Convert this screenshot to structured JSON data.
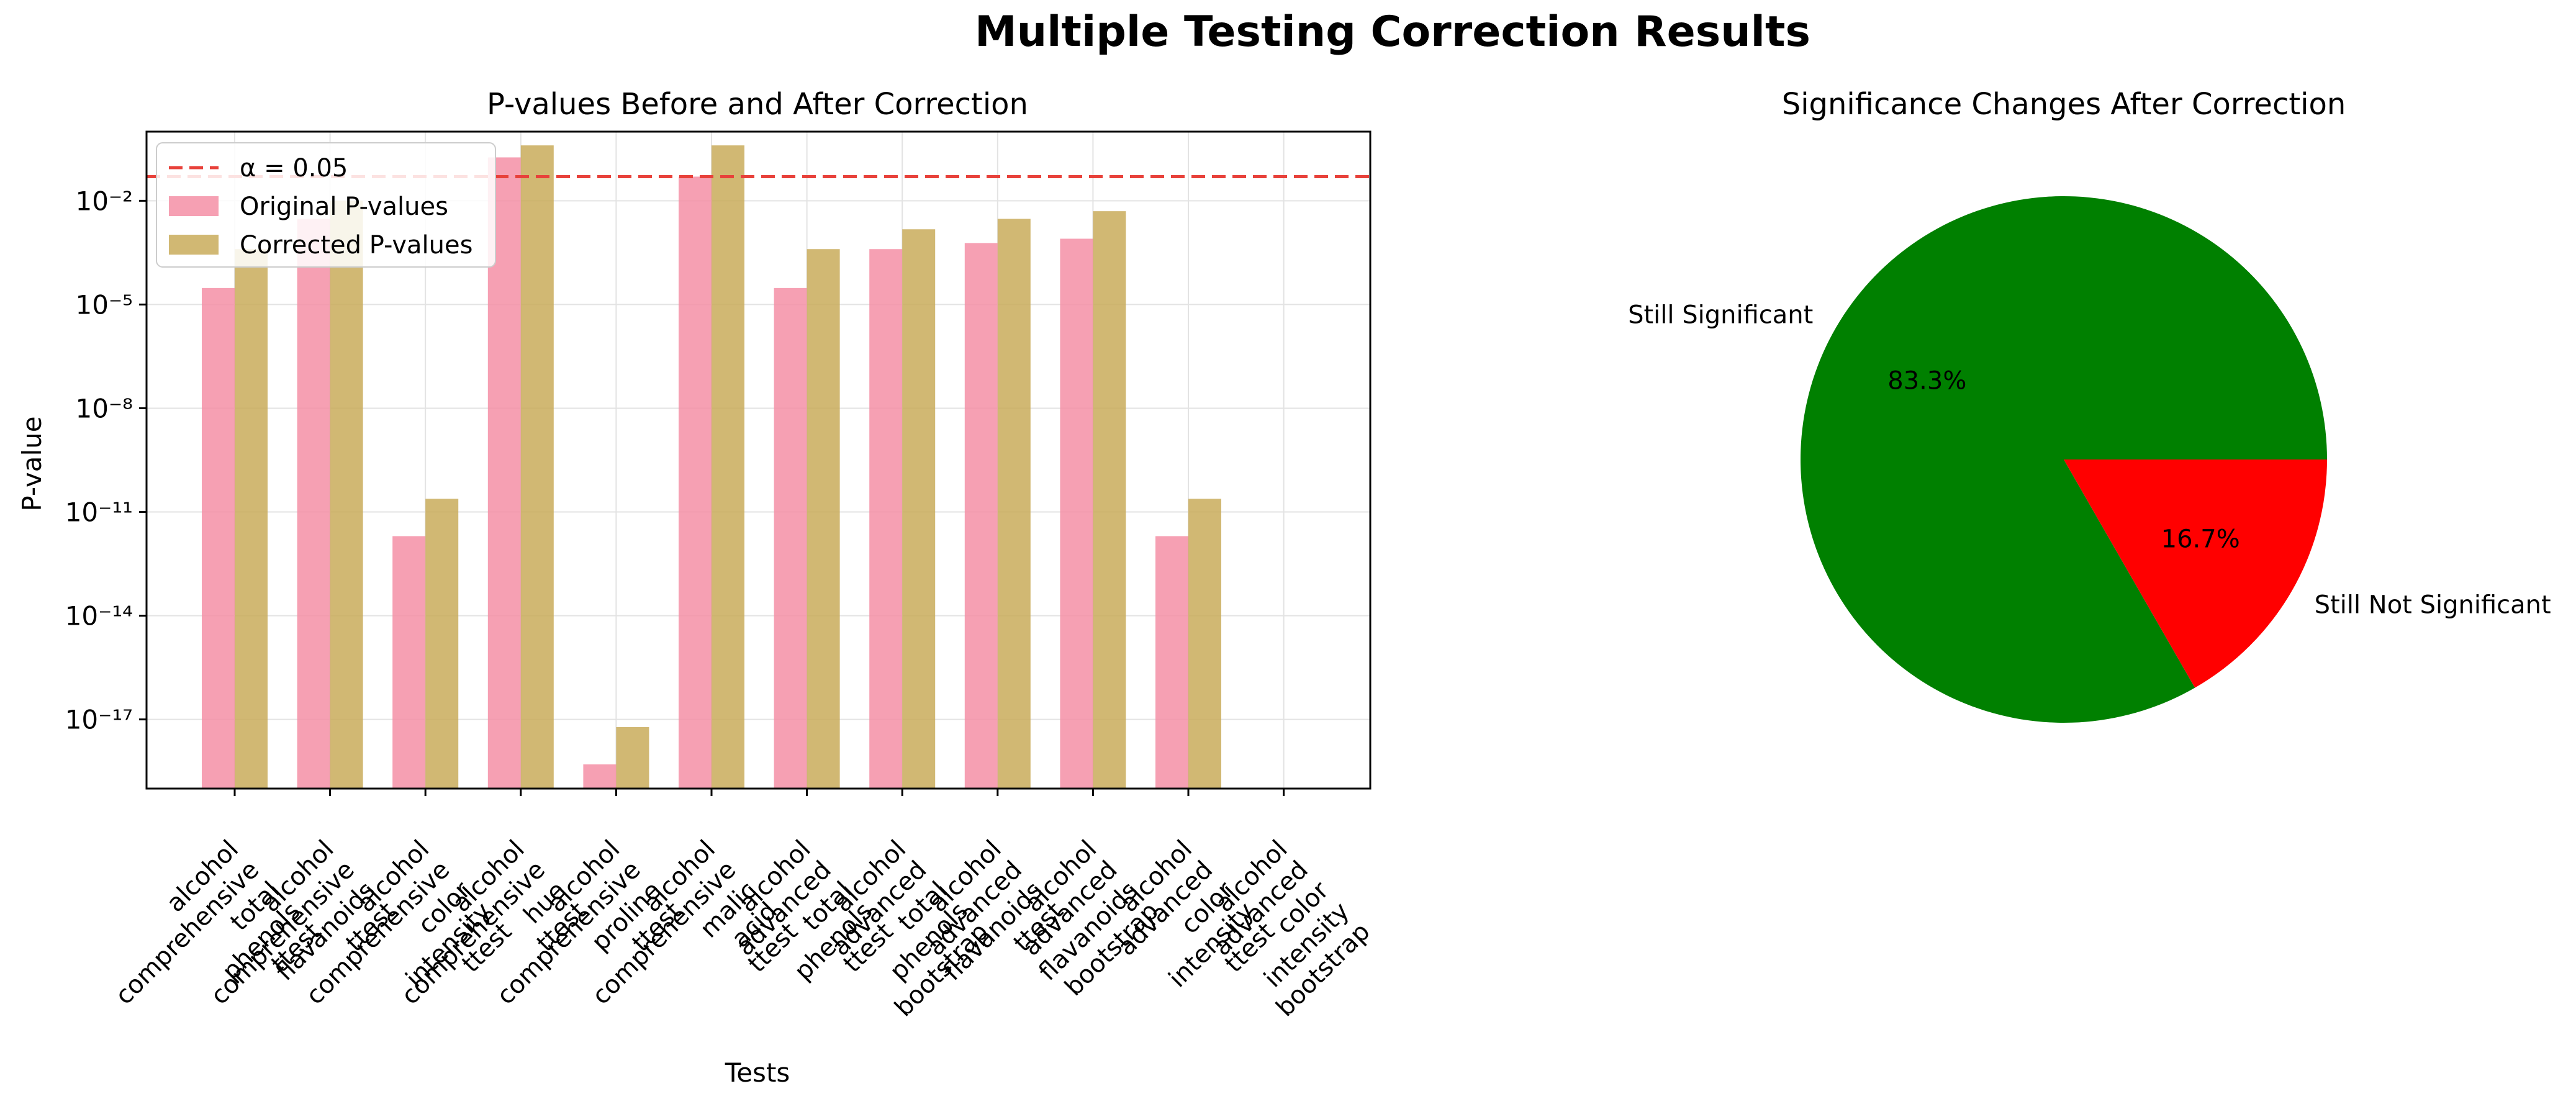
{
  "suptitle": "Multiple Testing Correction Results",
  "chart_data": [
    {
      "type": "bar",
      "title": "P-values Before and After Correction",
      "xlabel": "Tests",
      "ylabel": "P-value",
      "yscale": "log",
      "ylim": [
        1e-19,
        1.0
      ],
      "yticks": [
        {
          "value": 0.01,
          "label": "10⁻²"
        },
        {
          "value": 1e-05,
          "label": "10⁻⁵"
        },
        {
          "value": 1e-08,
          "label": "10⁻⁸"
        },
        {
          "value": 1e-11,
          "label": "10⁻¹¹"
        },
        {
          "value": 1e-14,
          "label": "10⁻¹⁴"
        },
        {
          "value": 1e-17,
          "label": "10⁻¹⁷"
        }
      ],
      "categories": [
        [
          "alcohol",
          "comprehensive",
          "total",
          "phenols",
          "ttest"
        ],
        [
          "alcohol",
          "comprehensive",
          "flavanoids",
          "ttest"
        ],
        [
          "alcohol",
          "comprehensive",
          "color",
          "intensity",
          "ttest"
        ],
        [
          "alcohol",
          "comprehensive",
          "hue",
          "ttest"
        ],
        [
          "alcohol",
          "comprehensive",
          "proline",
          "ttest"
        ],
        [
          "alcohol",
          "comprehensive",
          "malic",
          "acid",
          "ttest"
        ],
        [
          "alcohol",
          "advanced",
          "total",
          "phenols",
          "ttest"
        ],
        [
          "alcohol",
          "advanced",
          "total",
          "phenols",
          "bootstrap"
        ],
        [
          "alcohol",
          "advanced",
          "flavanoids",
          "ttest"
        ],
        [
          "alcohol",
          "advanced",
          "flavanoids",
          "bootstrap"
        ],
        [
          "alcohol",
          "advanced",
          "color",
          "intensity",
          "ttest"
        ],
        [
          "alcohol",
          "advanced",
          "color",
          "intensity",
          "bootstrap"
        ]
      ],
      "series": [
        {
          "name": "Original P-values",
          "color": "#f48fa6",
          "values": [
            3e-05,
            0.003,
            2e-12,
            0.18,
            5e-19,
            0.05,
            3e-05,
            0.0004,
            0.0006,
            0.0008,
            2e-12,
            0
          ]
        },
        {
          "name": "Corrected P-values",
          "color": "#c9ac5a",
          "values": [
            0.0004,
            0.01,
            2.4e-11,
            0.4,
            6e-18,
            0.4,
            0.0004,
            0.0015,
            0.003,
            0.005,
            2.4e-11,
            0
          ]
        }
      ],
      "reference_line": {
        "label": "α = 0.05",
        "value": 0.05,
        "color": "#e8413a"
      },
      "legend": "upper-left",
      "grid": true
    },
    {
      "type": "pie",
      "title": "Significance Changes After Correction",
      "slices": [
        {
          "label": "Still Significant",
          "value": 83.3,
          "pct_label": "83.3%",
          "color": "#008000"
        },
        {
          "label": "Still Not Significant",
          "value": 16.7,
          "pct_label": "16.7%",
          "color": "#ff0000"
        }
      ],
      "start_angle_deg": 0,
      "direction": "counterclockwise"
    }
  ]
}
